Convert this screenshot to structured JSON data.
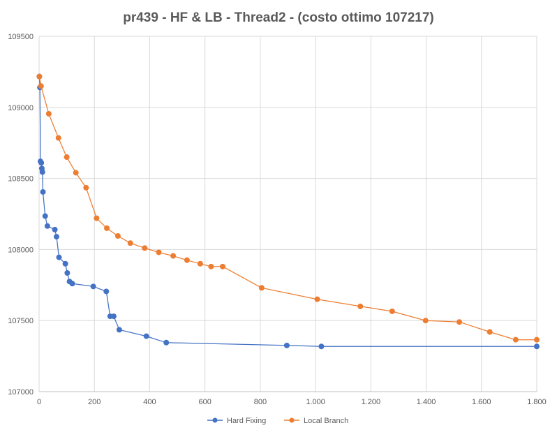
{
  "chart_data": {
    "type": "scatter",
    "title": "pr439 - HF & LB - Thread2 - (costo ottimo  107217)",
    "xlabel": "",
    "ylabel": "",
    "xlim": [
      0,
      1800
    ],
    "ylim": [
      107000,
      109500
    ],
    "x_ticks": [
      0,
      200,
      400,
      600,
      800,
      1000,
      1200,
      1400,
      1600,
      1800
    ],
    "x_tick_labels": [
      "0",
      "200",
      "400",
      "600",
      "800",
      "1.000",
      "1.200",
      "1.400",
      "1.600",
      "1.800"
    ],
    "y_ticks": [
      107000,
      107500,
      108000,
      108500,
      109000,
      109500
    ],
    "y_tick_labels": [
      "107000",
      "107500",
      "108000",
      "108500",
      "109000",
      "109500"
    ],
    "grid": true,
    "legend": "bottom",
    "series": [
      {
        "name": "Hard Fixing",
        "color": "#4472C4",
        "x": [
          1,
          3,
          5,
          8,
          10,
          12,
          14,
          22,
          30,
          57,
          63,
          72,
          95,
          102,
          110,
          120,
          196,
          243,
          257,
          270,
          290,
          388,
          460,
          896,
          1021,
          1800
        ],
        "y": [
          109217,
          109140,
          108620,
          108610,
          108570,
          108545,
          108405,
          108235,
          108165,
          108140,
          108090,
          107945,
          107900,
          107835,
          107775,
          107760,
          107740,
          107705,
          107530,
          107530,
          107435,
          107390,
          107345,
          107325,
          107318,
          107318
        ]
      },
      {
        "name": "Local Branch",
        "color": "#ED7D31",
        "x": [
          1,
          7,
          35,
          70,
          100,
          133,
          170,
          208,
          245,
          285,
          330,
          382,
          433,
          485,
          535,
          583,
          622,
          664,
          805,
          1006,
          1162,
          1277,
          1398,
          1520,
          1630,
          1724,
          1800
        ],
        "y": [
          109217,
          109150,
          108955,
          108785,
          108650,
          108540,
          108435,
          108220,
          108150,
          108095,
          108045,
          108010,
          107980,
          107955,
          107925,
          107900,
          107880,
          107880,
          107730,
          107650,
          107600,
          107565,
          107500,
          107490,
          107420,
          107365,
          107365
        ]
      }
    ]
  }
}
